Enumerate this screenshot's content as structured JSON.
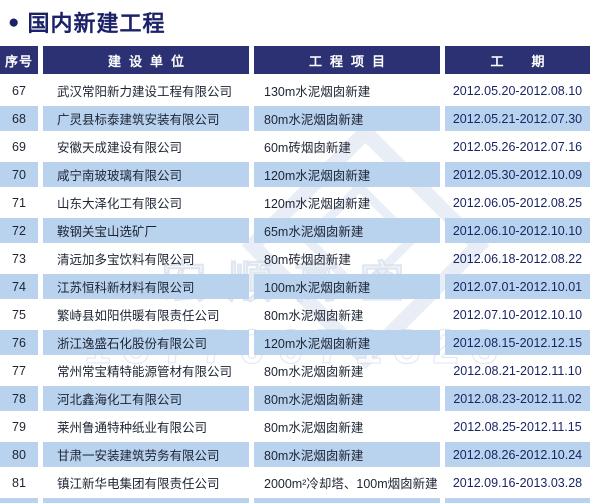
{
  "title": {
    "bullet": "●",
    "text": "国内新建工程"
  },
  "table": {
    "headers": {
      "no": "序号",
      "company": "建设单位",
      "project": "工程项目",
      "period": "工期"
    },
    "rows": [
      {
        "no": "67",
        "company": "武汉常阳新力建设工程有限公司",
        "project": "130m水泥烟囱新建",
        "period": "2012.05.20-2012.08.10"
      },
      {
        "no": "68",
        "company": "广灵县标泰建筑安装有限公司",
        "project": "80m水泥烟囱新建",
        "period": "2012.05.21-2012.07.30"
      },
      {
        "no": "69",
        "company": "安徽天成建设有限公司",
        "project": "60m砖烟囱新建",
        "period": "2012.05.26-2012.07.16"
      },
      {
        "no": "70",
        "company": "咸宁南玻玻璃有限公司",
        "project": "120m水泥烟囱新建",
        "period": "2012.05.30-2012.10.09"
      },
      {
        "no": "71",
        "company": "山东大泽化工有限公司",
        "project": "120m水泥烟囱新建",
        "period": "2012.06.05-2012.08.25"
      },
      {
        "no": "72",
        "company": "鞍钢关宝山选矿厂",
        "project": "65m水泥烟囱新建",
        "period": "2012.06.10-2012.10.10"
      },
      {
        "no": "73",
        "company": "清远加多宝饮料有限公司",
        "project": "80m砖烟囱新建",
        "period": "2012.06.18-2012.08.22"
      },
      {
        "no": "74",
        "company": "江苏恒科新材料有限公司",
        "project": "100m水泥烟囱新建",
        "period": "2012.07.01-2012.10.01"
      },
      {
        "no": "75",
        "company": "繁峙县如阳供暖有限责任公司",
        "project": "80m水泥烟囱新建",
        "period": "2012.07.10-2012.10.10"
      },
      {
        "no": "76",
        "company": "浙江逸盛石化股份有限公司",
        "project": "120m水泥烟囱新建",
        "period": "2012.08.15-2012.12.15"
      },
      {
        "no": "77",
        "company": "常州常宝精特能源管材有限公司",
        "project": "80m水泥烟囱新建",
        "period": "2012.08.21-2012.11.10"
      },
      {
        "no": "78",
        "company": "河北鑫海化工有限公司",
        "project": "80m水泥烟囱新建",
        "period": "2012.08.23-2012.11.02"
      },
      {
        "no": "79",
        "company": "莱州鲁通特种纸业有限公司",
        "project": "80m水泥烟囱新建",
        "period": "2012.08.25-2012.11.15"
      },
      {
        "no": "80",
        "company": "甘肃一安装建筑劳务有限公司",
        "project": "80m水泥烟囱新建",
        "period": "2012.08.26-2012.10.24"
      },
      {
        "no": "81",
        "company": "镇江新华电集团有限责任公司",
        "project": "2000m²冷却塔、100m烟囱新建",
        "period": "2012.09.16-2013.03.28"
      }
    ]
  },
  "watermark": {
    "brand": "宏顺高空",
    "phone": "13770071828"
  },
  "colors": {
    "header_bg": "#2b3173",
    "title_text": "#1b2268",
    "row_alt_bg": "#b9d3ee",
    "date_text": "#1a2565",
    "body_text": "#1d2433"
  }
}
